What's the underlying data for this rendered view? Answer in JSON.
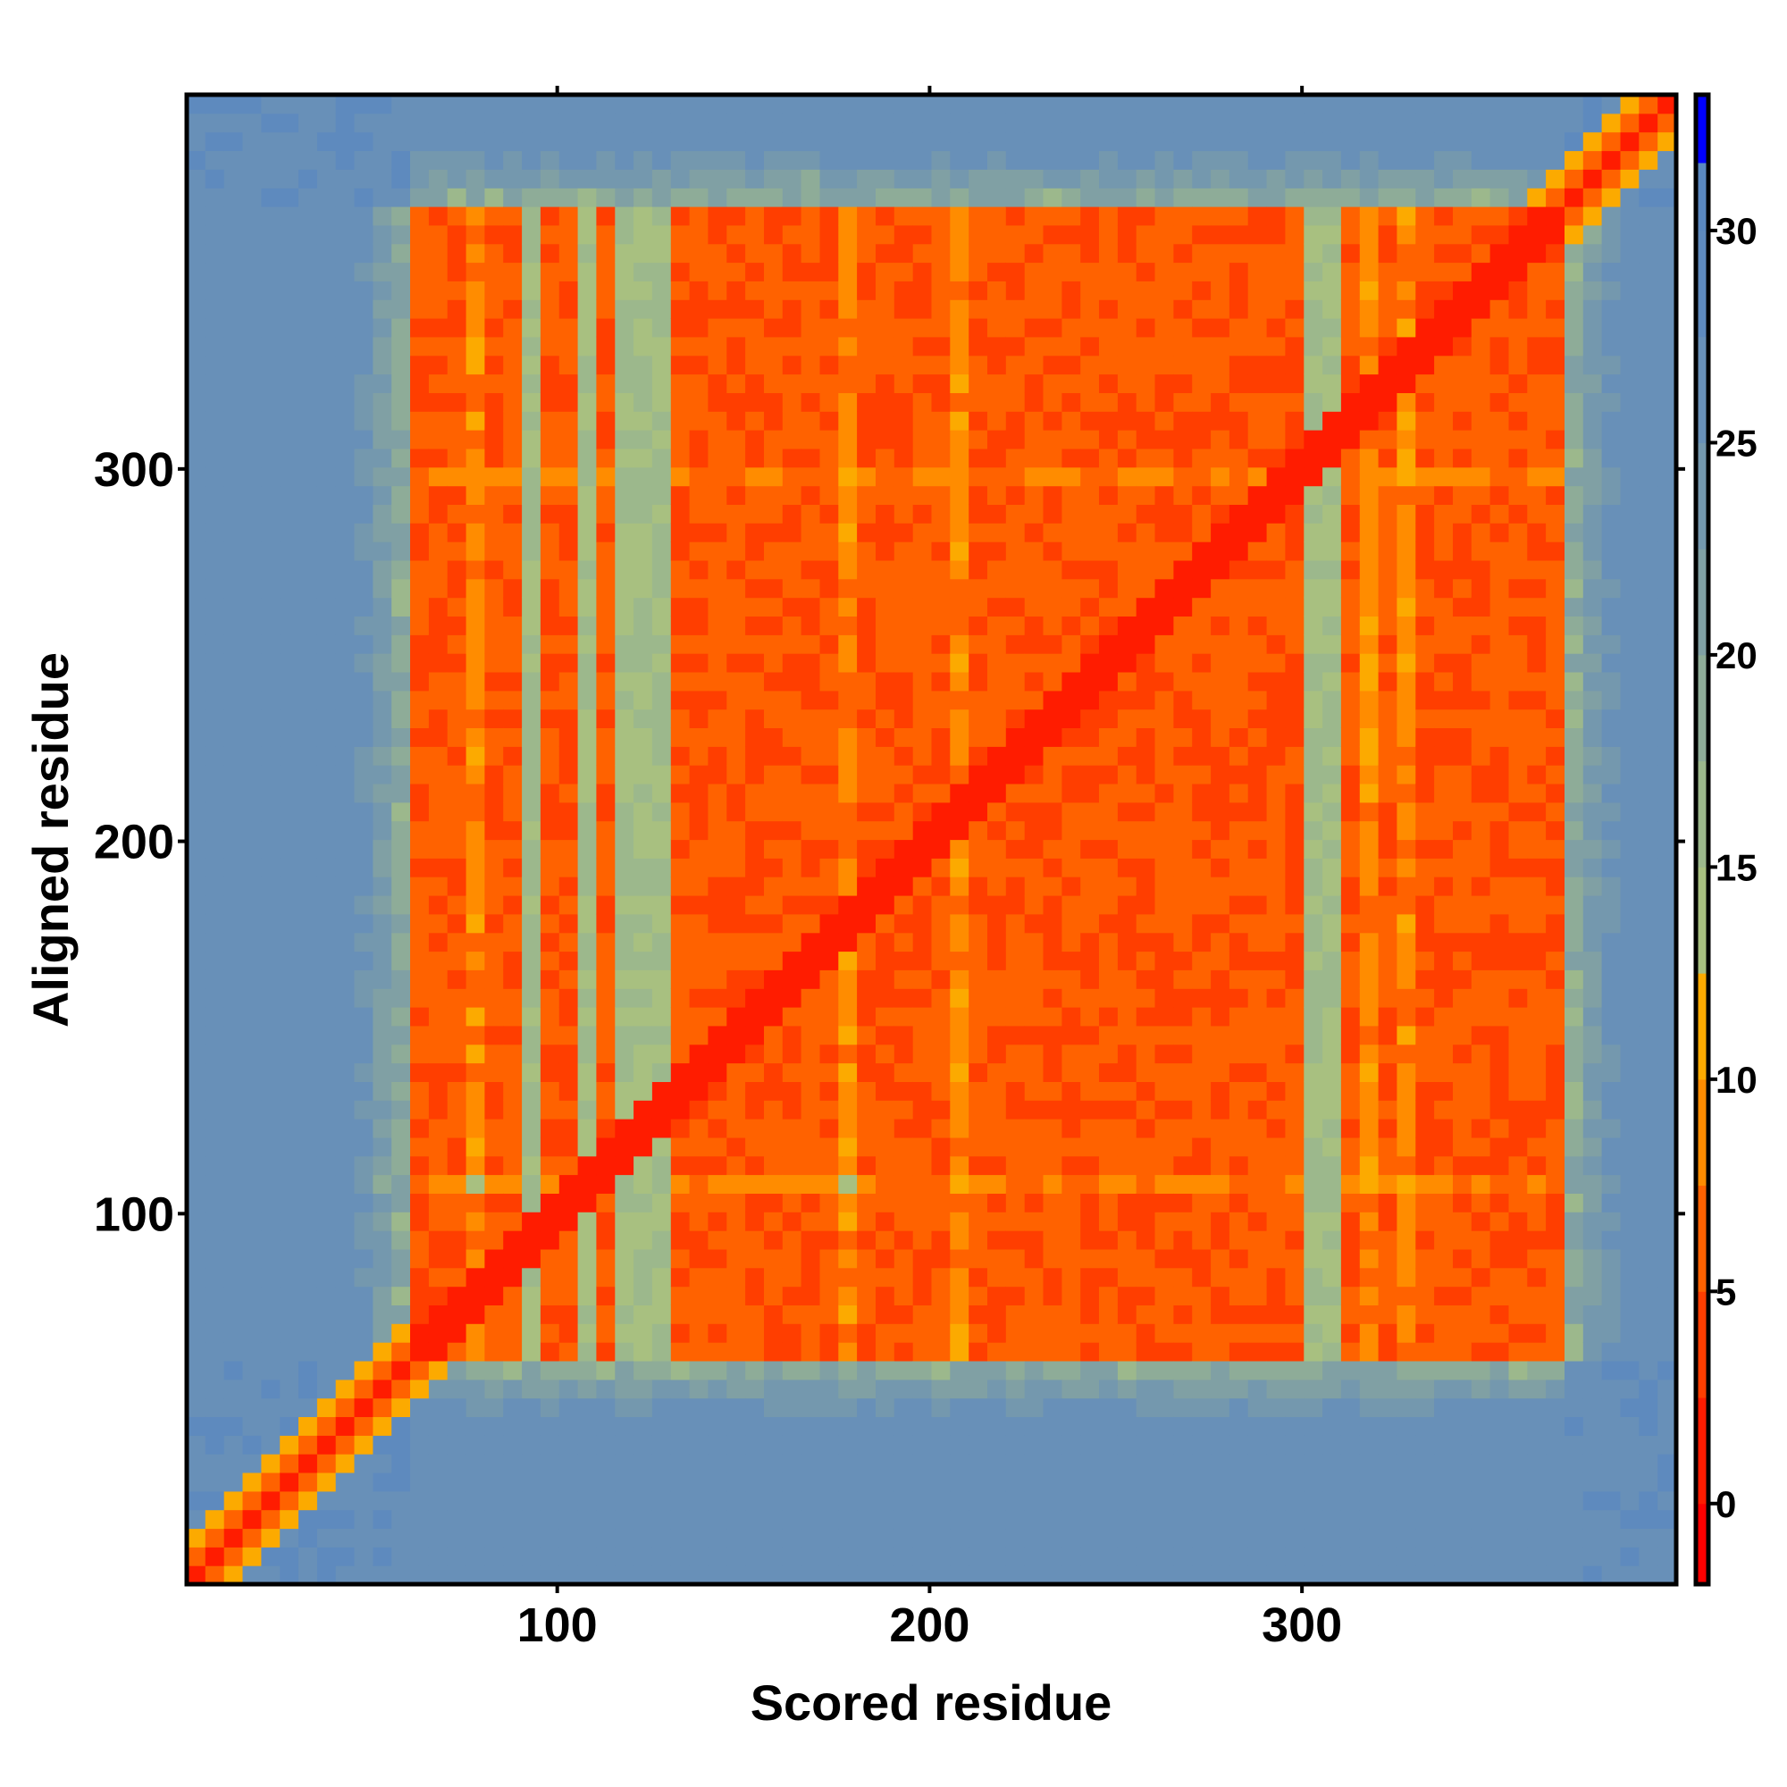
{
  "chart_data": {
    "type": "heatmap",
    "title": "",
    "xlabel": "Scored residue",
    "ylabel": "Aligned residue",
    "xlim": [
      0.5,
      400.5
    ],
    "ylim": [
      0.5,
      400.5
    ],
    "xticks": [
      100,
      200,
      300
    ],
    "yticks": [
      100,
      200,
      300
    ],
    "xtick_labels": [
      "100",
      "200",
      "300"
    ],
    "ytick_labels": [
      "100",
      "200",
      "300"
    ],
    "colorbar": {
      "range": [
        -1.9,
        33.2
      ],
      "ticks": [
        0,
        5,
        10,
        15,
        20,
        25,
        30
      ],
      "tick_labels": [
        "0",
        "5",
        "10",
        "15",
        "20",
        "25",
        "30"
      ],
      "bins": [
        {
          "from": -2.5,
          "to": 0,
          "color": "#ff0000"
        },
        {
          "from": 0,
          "to": 2.5,
          "color": "#ff1c00"
        },
        {
          "from": 2.5,
          "to": 5,
          "color": "#ff3e00"
        },
        {
          "from": 5,
          "to": 7.5,
          "color": "#ff6200"
        },
        {
          "from": 7.5,
          "to": 10,
          "color": "#ff8c00"
        },
        {
          "from": 10,
          "to": 12.5,
          "color": "#fcaa00"
        },
        {
          "from": 12.5,
          "to": 15,
          "color": "#a8c080"
        },
        {
          "from": 15,
          "to": 17.5,
          "color": "#9cb88c"
        },
        {
          "from": 17.5,
          "to": 20,
          "color": "#8eac98"
        },
        {
          "from": 20,
          "to": 22.5,
          "color": "#80a0a4"
        },
        {
          "from": 22.5,
          "to": 25,
          "color": "#7498ae"
        },
        {
          "from": 25,
          "to": 27.5,
          "color": "#6890b8"
        },
        {
          "from": 27.5,
          "to": 30,
          "color": "#5e8abe"
        },
        {
          "from": 30,
          "to": 31.6,
          "color": "#5a88c0"
        },
        {
          "from": 31.6,
          "to": 35,
          "color": "#0000ff"
        }
      ]
    },
    "cell_size_residues": 5,
    "model": {
      "structured_region": [
        62,
        369
      ],
      "in_region_value": 5.5,
      "diagonal_value": 0.5,
      "outside_value": 27,
      "boundary_band_value": 17,
      "gap_columns": [
        [
          93,
          97
        ],
        [
          105,
          110
        ],
        [
          118,
          130
        ],
        [
          300,
          308
        ]
      ],
      "light_columns": [
        [
          78,
          82
        ],
        [
          178,
          182
        ],
        [
          208,
          212
        ],
        [
          314,
          318
        ],
        [
          328,
          331
        ]
      ],
      "light_rows": [
        [
          106,
          110
        ],
        [
          296,
          302
        ]
      ]
    }
  }
}
